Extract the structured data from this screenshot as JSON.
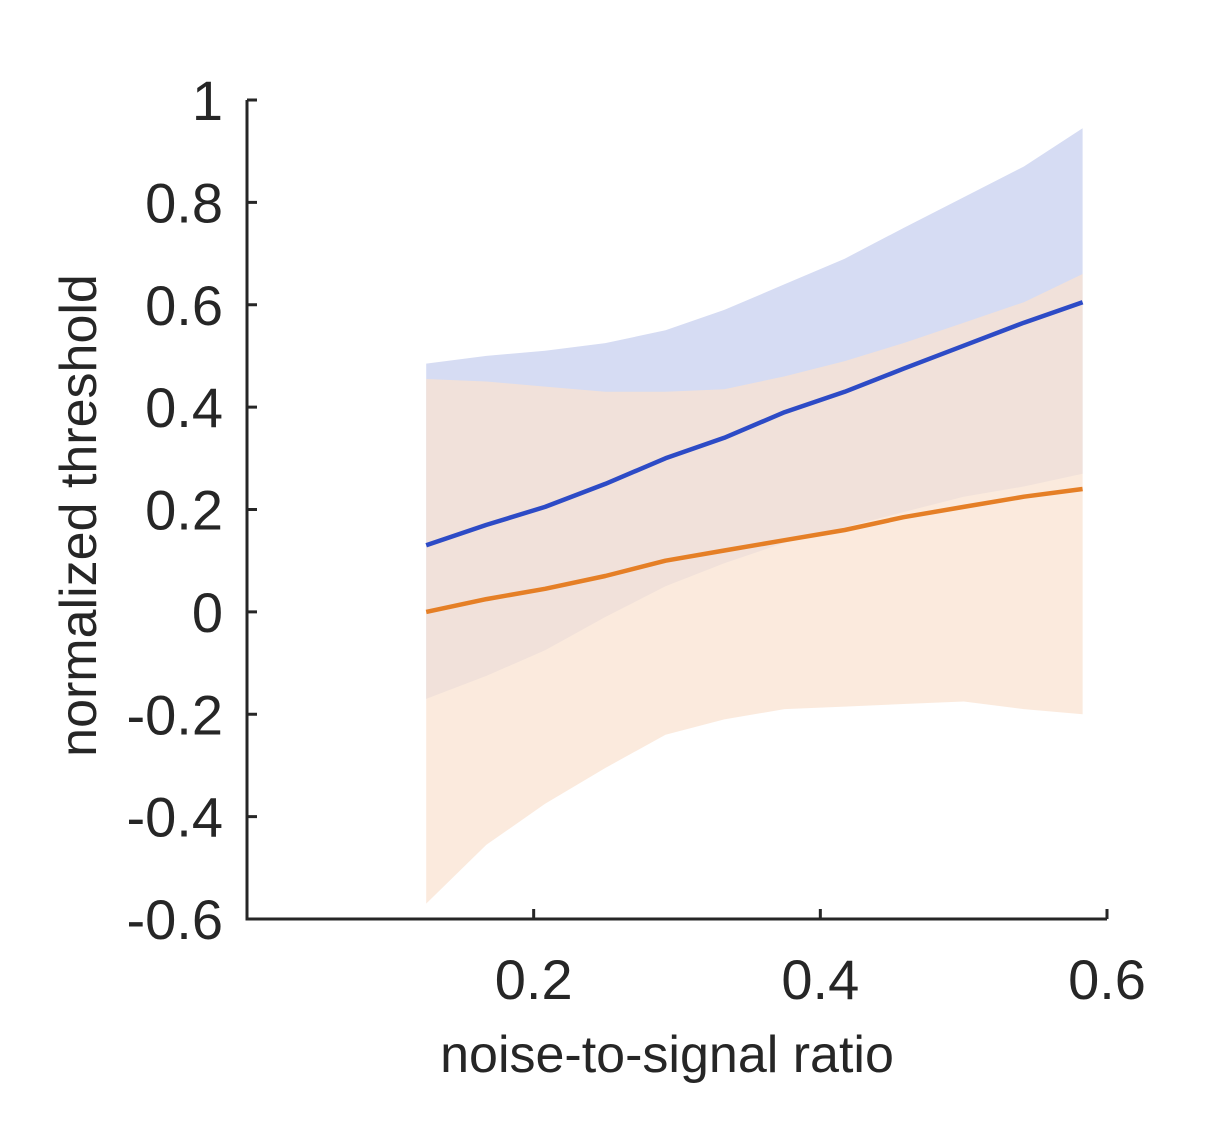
{
  "chart_data": {
    "type": "line",
    "title": "",
    "xlabel": "noise-to-signal ratio",
    "ylabel": "normalized threshold",
    "xlim": [
      0,
      0.6
    ],
    "ylim": [
      -0.6,
      1
    ],
    "xticks": [
      0.2,
      0.4,
      0.6
    ],
    "xtick_labels": [
      "0.2",
      "0.4",
      "0.6"
    ],
    "yticks": [
      -0.6,
      -0.4,
      -0.2,
      0,
      0.2,
      0.4,
      0.6,
      0.8,
      1
    ],
    "ytick_labels": [
      "-0.6",
      "-0.4",
      "-0.2",
      "0",
      "0.2",
      "0.4",
      "0.6",
      "0.8",
      "1"
    ],
    "grid": false,
    "x": [
      0.125,
      0.167,
      0.208,
      0.25,
      0.292,
      0.333,
      0.375,
      0.417,
      0.458,
      0.5,
      0.542,
      0.583
    ],
    "series": [
      {
        "color": "#2d4bc6",
        "band_color": "#d6dcf3",
        "values": [
          0.13,
          0.17,
          0.205,
          0.25,
          0.3,
          0.34,
          0.39,
          0.43,
          0.475,
          0.52,
          0.565,
          0.605
        ],
        "upper": [
          0.485,
          0.5,
          0.51,
          0.525,
          0.55,
          0.59,
          0.64,
          0.69,
          0.75,
          0.81,
          0.87,
          0.945
        ],
        "lower": [
          -0.17,
          -0.125,
          -0.075,
          -0.01,
          0.05,
          0.095,
          0.135,
          0.165,
          0.195,
          0.225,
          0.245,
          0.27
        ]
      },
      {
        "color": "#e57f26",
        "band_color": "#f9e3d1",
        "values": [
          0.0,
          0.025,
          0.045,
          0.07,
          0.1,
          0.12,
          0.14,
          0.16,
          0.185,
          0.205,
          0.225,
          0.24
        ],
        "upper": [
          0.455,
          0.45,
          0.44,
          0.43,
          0.43,
          0.435,
          0.46,
          0.49,
          0.525,
          0.565,
          0.605,
          0.66
        ],
        "lower": [
          -0.57,
          -0.455,
          -0.375,
          -0.305,
          -0.24,
          -0.21,
          -0.19,
          -0.185,
          -0.18,
          -0.175,
          -0.19,
          -0.2
        ]
      }
    ]
  }
}
